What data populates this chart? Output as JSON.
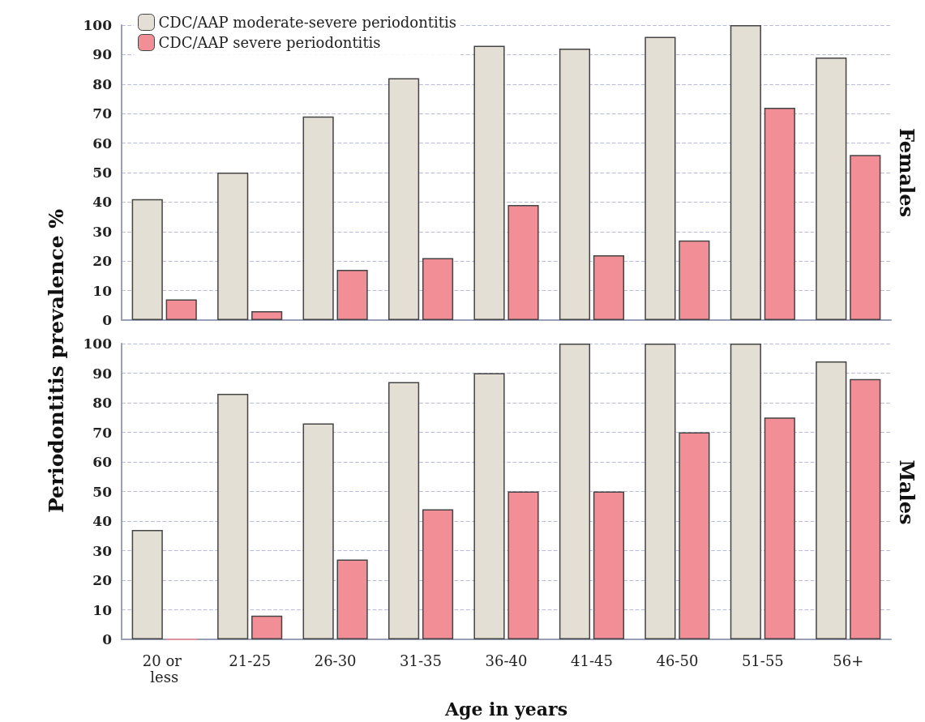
{
  "chart_data": [
    {
      "type": "bar",
      "ylabel": "Periodontitis prevalence %",
      "y2label": "Females",
      "categories": [
        "20 or less",
        "21-25",
        "26-30",
        "31-35",
        "36-40",
        "41-45",
        "46-50",
        "51-55",
        "56+"
      ],
      "series": [
        {
          "name": "CDC/AAP moderate-severe periodontitis",
          "color": "#e3dfd4",
          "values": [
            41,
            50,
            69,
            82,
            93,
            92,
            96,
            100,
            89
          ]
        },
        {
          "name": "CDC/AAP severe periodontitis",
          "color": "#f28f96",
          "values": [
            7,
            3,
            17,
            21,
            39,
            22,
            27,
            72,
            56
          ]
        }
      ],
      "ylim": [
        0,
        100
      ],
      "yticks": [
        0,
        10,
        20,
        30,
        40,
        50,
        60,
        70,
        80,
        90,
        100
      ],
      "grid": "y",
      "legend": "top left",
      "tick_labels": "y"
    },
    {
      "type": "bar",
      "xlabel": "Age in years",
      "y2label": "Males",
      "categories": [
        "20 or less",
        "21-25",
        "26-30",
        "31-35",
        "36-40",
        "41-45",
        "46-50",
        "51-55",
        "56+"
      ],
      "series": [
        {
          "color": "#e3dfd4",
          "values": [
            37,
            83,
            73,
            87,
            90,
            100,
            100,
            100,
            94
          ]
        },
        {
          "color": "#f28f96",
          "values": [
            0,
            8,
            27,
            44,
            50,
            50,
            70,
            75,
            88
          ]
        }
      ],
      "ylim": [
        0,
        100
      ],
      "yticks": [
        0,
        10,
        20,
        30,
        40,
        50,
        60,
        70,
        80,
        90,
        100
      ],
      "grid": "y"
    }
  ]
}
